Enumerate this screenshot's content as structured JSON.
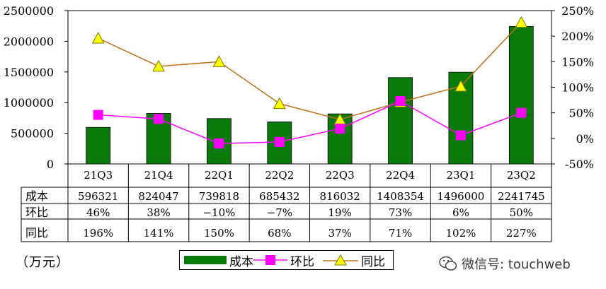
{
  "chart_data": {
    "type": "bar+line",
    "categories": [
      "21Q3",
      "21Q4",
      "22Q1",
      "22Q2",
      "22Q3",
      "22Q4",
      "23Q1",
      "23Q2"
    ],
    "series": [
      {
        "name": "成本",
        "type": "bar",
        "axis": "left",
        "color": "#0a7a0a",
        "values": [
          596321,
          824047,
          739818,
          685432,
          816032,
          1408354,
          1496000,
          2241745
        ]
      },
      {
        "name": "环比",
        "type": "line",
        "axis": "right",
        "color": "#ff00ff",
        "marker": "square",
        "values": [
          46,
          38,
          -10,
          -7,
          19,
          73,
          6,
          50
        ],
        "labels": [
          "46%",
          "38%",
          "−10%",
          "−7%",
          "19%",
          "73%",
          "6%",
          "50%"
        ]
      },
      {
        "name": "同比",
        "type": "line",
        "axis": "right",
        "color": "#c0701a",
        "marker": "triangle",
        "values": [
          196,
          141,
          150,
          68,
          37,
          71,
          102,
          227
        ],
        "labels": [
          "196%",
          "141%",
          "150%",
          "68%",
          "37%",
          "71%",
          "102%",
          "227%"
        ]
      }
    ],
    "left_axis": {
      "min": 0,
      "max": 2500000,
      "step": 500000,
      "ticks": [
        "0",
        "500000",
        "1000000",
        "1500000",
        "2000000",
        "2500000"
      ]
    },
    "right_axis": {
      "min": -50,
      "max": 250,
      "step": 50,
      "ticks": [
        "-50%",
        "0%",
        "50%",
        "100%",
        "150%",
        "200%",
        "250%"
      ]
    },
    "table_rows": [
      {
        "label": "成本",
        "values": [
          "596321",
          "824047",
          "739818",
          "685432",
          "816032",
          "1408354",
          "1496000",
          "2241745"
        ]
      },
      {
        "label": "环比",
        "values": [
          "46%",
          "38%",
          "−10%",
          "−7%",
          "19%",
          "73%",
          "6%",
          "50%"
        ]
      },
      {
        "label": "同比",
        "values": [
          "196%",
          "141%",
          "150%",
          "68%",
          "37%",
          "71%",
          "102%",
          "227%"
        ]
      }
    ],
    "legend_position": "bottom"
  },
  "unit_label": "（万元）",
  "legend": {
    "bar": "成本",
    "line1": "环比",
    "line2": "同比"
  },
  "watermark": "微信号: touchweb",
  "colors": {
    "bar": "#0a7a0a",
    "hb": "#ff00ff",
    "tb": "#c0701a",
    "triangle_fill": "#ffff00"
  }
}
